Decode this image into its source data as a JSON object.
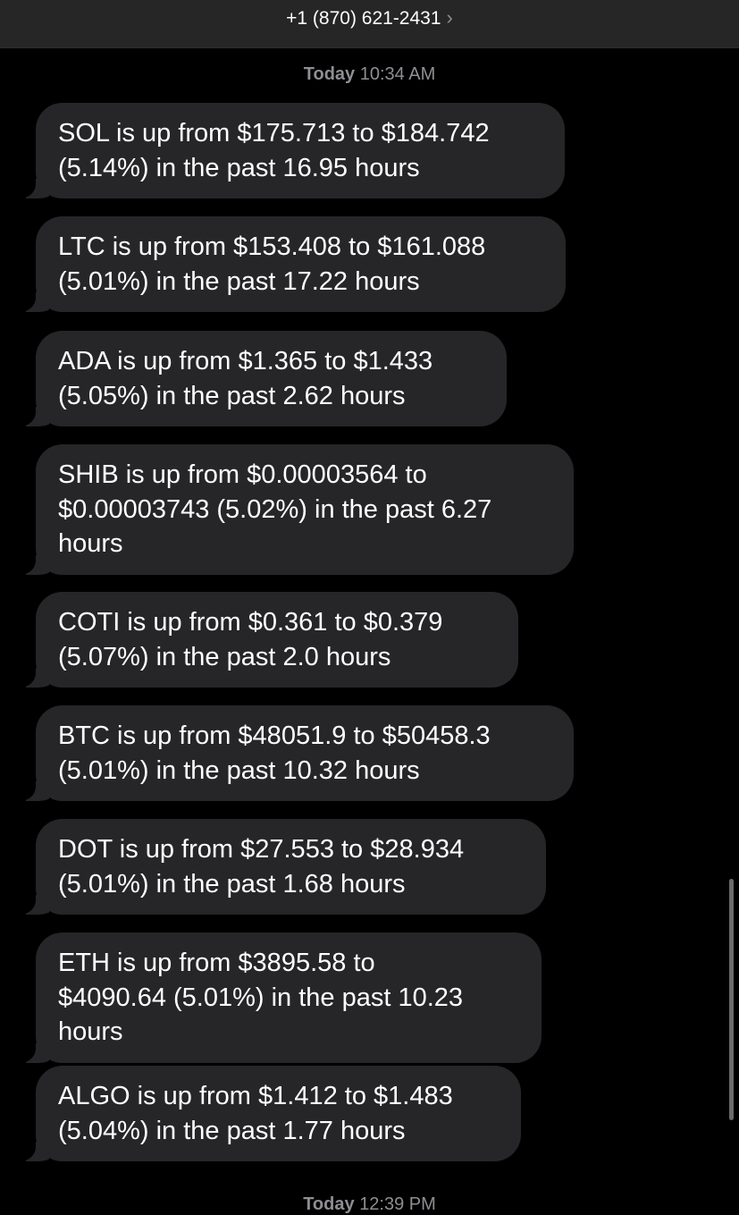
{
  "header": {
    "contact": "+1 (870) 621-2431",
    "chevron": "›"
  },
  "timestamps": [
    {
      "day": "Today",
      "time": "10:34 AM"
    },
    {
      "day": "Today",
      "time": "12:39 PM"
    }
  ],
  "messages": [
    {
      "lines": [
        "SOL is up from $175.713 to $184.742",
        "(5.14%) in the past 16.95 hours"
      ]
    },
    {
      "lines": [
        "LTC is up from $153.408 to $161.088",
        "(5.01%) in the past 17.22 hours"
      ]
    },
    {
      "lines": [
        "ADA is up from $1.365 to $1.433",
        "(5.05%) in the past 2.62 hours"
      ]
    },
    {
      "lines": [
        "SHIB is up from $0.00003564 to",
        "$0.00003743 (5.02%) in the past 6.27",
        "hours"
      ]
    },
    {
      "lines": [
        "COTI is up from $0.361 to $0.379",
        "(5.07%) in the past 2.0 hours"
      ]
    },
    {
      "lines": [
        "BTC is up from $48051.9 to $50458.3",
        "(5.01%) in the past 10.32 hours"
      ]
    },
    {
      "lines": [
        "DOT is up from $27.553 to $28.934",
        "(5.01%) in the past 1.68 hours"
      ]
    },
    {
      "lines": [
        "ETH is up from $3895.58 to",
        "$4090.64 (5.01%) in the past 10.23",
        "hours"
      ]
    },
    {
      "lines": [
        "ALGO is up from $1.412 to $1.483",
        "(5.04%) in the past 1.77 hours"
      ]
    }
  ]
}
